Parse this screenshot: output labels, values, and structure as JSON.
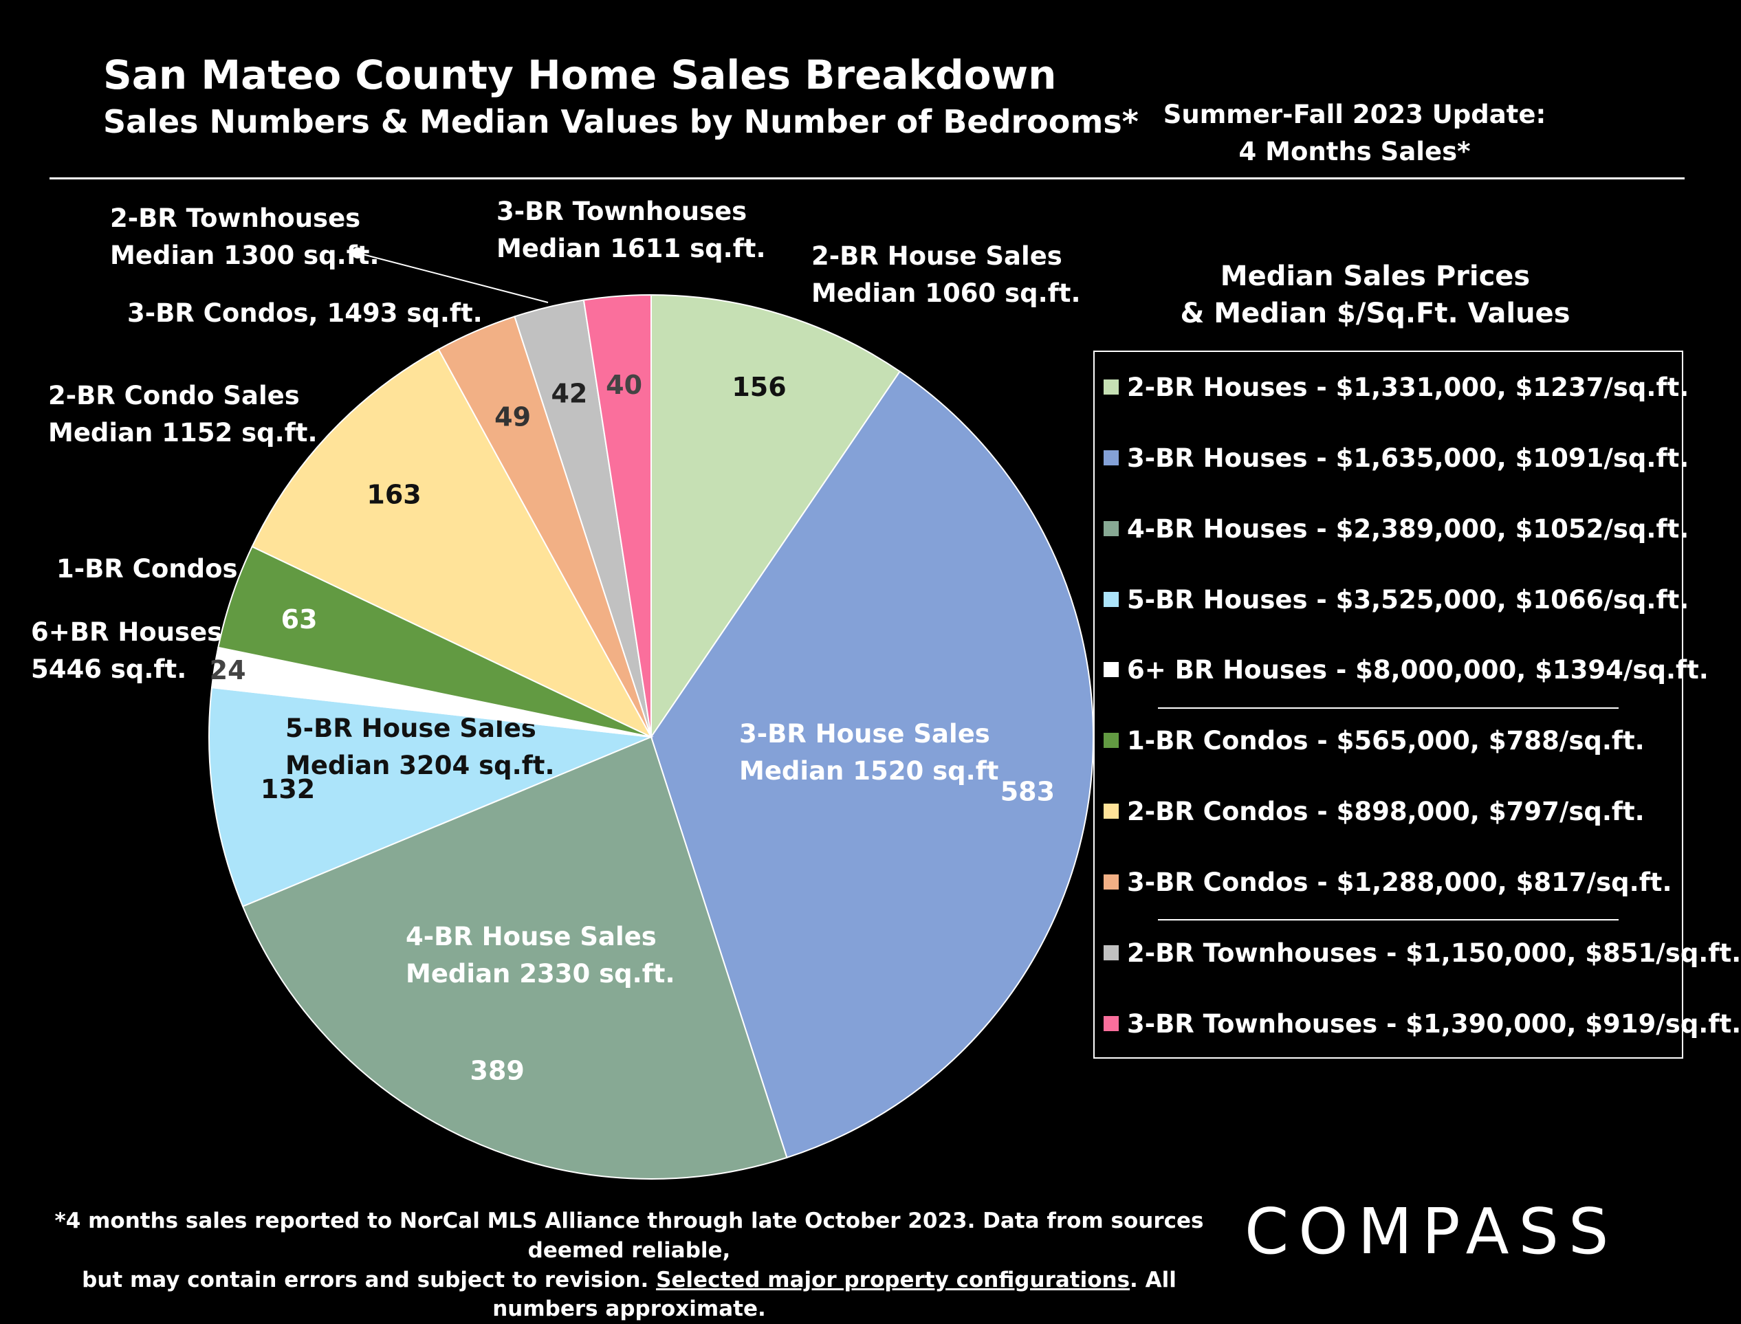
{
  "header": {
    "title": "San Mateo County Home Sales Breakdown",
    "subtitle": "Sales Numbers & Median Values by Number of Bedrooms*",
    "update_line1": "Summer-Fall 2023 Update:",
    "update_line2": "4 Months Sales*"
  },
  "legend": {
    "title_line1": "Median Sales Prices",
    "title_line2": "& Median $/Sq.Ft. Values",
    "items": [
      {
        "label": "2-BR Houses - $1,331,000, $1237/sq.ft.",
        "color": "#c6e0b4"
      },
      {
        "label": "3-BR Houses - $1,635,000, $1091/sq.ft.",
        "color": "#84a1d7"
      },
      {
        "label": "4-BR Houses - $2,389,000, $1052/sq.ft.",
        "color": "#87a994"
      },
      {
        "label": "5-BR Houses - $3,525,000, $1066/sq.ft.",
        "color": "#ace4fa"
      },
      {
        "label": "6+ BR Houses - $8,000,000, $1394/sq.ft.",
        "color": "#ffffff"
      },
      {
        "label": "1-BR Condos - $565,000, $788/sq.ft.",
        "color": "#629a42"
      },
      {
        "label": "2-BR Condos - $898,000, $797/sq.ft.",
        "color": "#ffe399"
      },
      {
        "label": "3-BR Condos - $1,288,000, $817/sq.ft.",
        "color": "#f2b085"
      },
      {
        "label": "2-BR Townhouses - $1,150,000, $851/sq.ft.",
        "color": "#c1c1c1"
      },
      {
        "label": "3-BR Townhouses - $1,390,000, $919/sq.ft.",
        "color": "#fa6f9c"
      }
    ]
  },
  "chart_data": {
    "type": "pie",
    "title": "San Mateo County Home Sales Breakdown",
    "subtitle": "Sales Numbers & Median Values by Number of Bedrooms*",
    "start": "12 o'clock, clockwise",
    "slices": [
      {
        "name": "2-BR Houses",
        "value": 156,
        "color": "#c6e0b4",
        "label_color": "#111111",
        "callout": [
          "2-BR House Sales",
          "Median 1060 sq.ft."
        ]
      },
      {
        "name": "3-BR Houses",
        "value": 583,
        "color": "#84a1d7",
        "label_color": "#ffffff",
        "callout": [
          "3-BR House Sales",
          "Median 1520 sq.ft"
        ]
      },
      {
        "name": "4-BR Houses",
        "value": 389,
        "color": "#87a994",
        "label_color": "#ffffff",
        "callout": [
          "4-BR House Sales",
          "Median 2330 sq.ft."
        ]
      },
      {
        "name": "5-BR Houses",
        "value": 132,
        "color": "#ace4fa",
        "label_color": "#111111",
        "callout": [
          "5-BR House Sales",
          "Median 3204 sq.ft."
        ]
      },
      {
        "name": "6+BR Houses",
        "value": 24,
        "color": "#ffffff",
        "label_color": "#444444",
        "callout": [
          "6+BR Houses",
          "5446 sq.ft."
        ]
      },
      {
        "name": "1-BR Condos",
        "value": 63,
        "color": "#629a42",
        "label_color": "#ffffff",
        "callout": [
          "1-BR Condos"
        ]
      },
      {
        "name": "2-BR Condos",
        "value": 163,
        "color": "#ffe399",
        "label_color": "#111111",
        "callout": [
          "2-BR Condo Sales",
          "Median 1152 sq.ft."
        ]
      },
      {
        "name": "3-BR Condos",
        "value": 49,
        "color": "#f2b085",
        "label_color": "#333333",
        "callout": [
          "3-BR Condos, 1493 sq.ft."
        ]
      },
      {
        "name": "2-BR Townhouses",
        "value": 42,
        "color": "#c1c1c1",
        "label_color": "#222222",
        "callout": [
          "2-BR Townhouses",
          "Median 1300 sq.ft."
        ]
      },
      {
        "name": "3-BR Townhouses",
        "value": 40,
        "color": "#fa6f9c",
        "label_color": "#444444",
        "callout": [
          "3-BR Townhouses",
          "Median 1611 sq.ft."
        ]
      }
    ]
  },
  "footer": {
    "line1": "*4 months sales reported to NorCal MLS Alliance through late October 2023. Data from sources deemed reliable,",
    "line2_pre": "but may contain errors and subject to revision. ",
    "line2_link": "Selected major property configurations",
    "line2_post": ". All numbers approximate.",
    "logo": "COMPASS"
  }
}
